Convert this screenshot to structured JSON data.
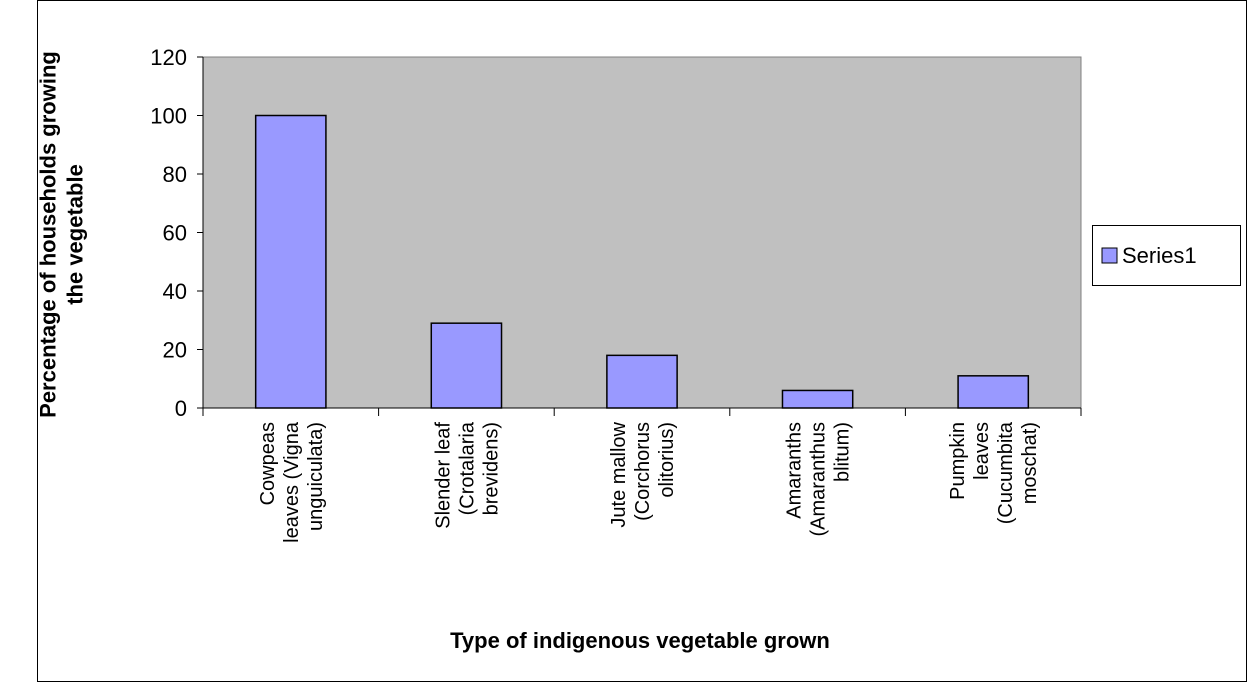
{
  "chart_data": {
    "type": "bar",
    "ylabel": [
      "Percentage of households growing",
      "the vegetable"
    ],
    "xlabel": "Type of indigenous vegetable grown",
    "categories": [
      [
        "Cowpeas",
        "leaves (Vigna",
        "unguiculata)"
      ],
      [
        "Slender leaf",
        "(Crotalaria",
        "brevidens)"
      ],
      [
        "Jute mallow",
        "(Corchorus",
        "olitorius)"
      ],
      [
        "Amaranths",
        "(Amaranthus",
        "blitum)"
      ],
      [
        "Pumpkin",
        "leaves",
        "(Cucumbita",
        "moschat)"
      ]
    ],
    "series": [
      {
        "name": "Series1",
        "color": "#9999ff",
        "values": [
          100,
          29,
          18,
          6,
          11
        ]
      }
    ],
    "ylim": [
      0,
      120
    ],
    "yticks": [
      0,
      20,
      40,
      60,
      80,
      100,
      120
    ],
    "legend": "right",
    "plot_background": "#c0c0c0"
  }
}
